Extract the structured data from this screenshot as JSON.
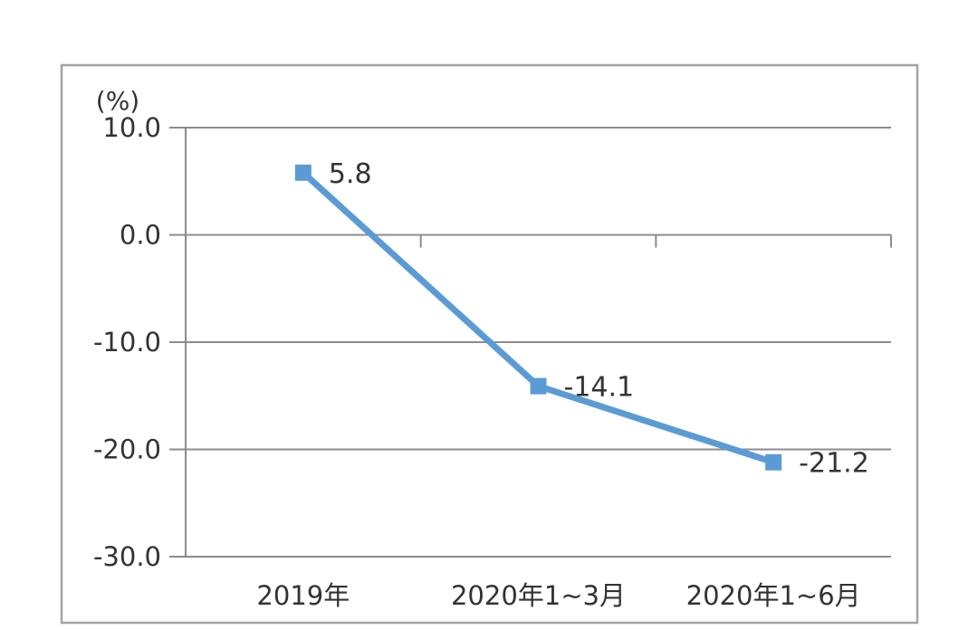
{
  "chart_data": {
    "type": "line",
    "categories": [
      "2019年",
      "2020年1~3月",
      "2020年1~6月"
    ],
    "series": [
      {
        "name": "growth-rate",
        "values": [
          5.8,
          -14.1,
          -21.2
        ],
        "data_labels": [
          "5.8",
          "-14.1",
          "-21.2"
        ]
      }
    ],
    "title": "",
    "xlabel": "",
    "ylabel": "(%)",
    "unit_label": "(%)",
    "ylim": [
      -30,
      10
    ],
    "y_ticks": [
      10,
      0,
      -10,
      -20,
      -30
    ],
    "y_tick_labels": [
      "10.0",
      "0.0",
      "-10.0",
      "-20.0",
      "-30.0"
    ],
    "grid": true,
    "legend": "none",
    "marker": "square",
    "colors": {
      "line": "#5B9BD5",
      "marker": "#5B9BD5",
      "gridline": "#8C8C8C",
      "axis": "#8C8C8C",
      "outer_border": "#A3A3A3",
      "text": "#333333",
      "background": "#FFFFFF"
    }
  }
}
